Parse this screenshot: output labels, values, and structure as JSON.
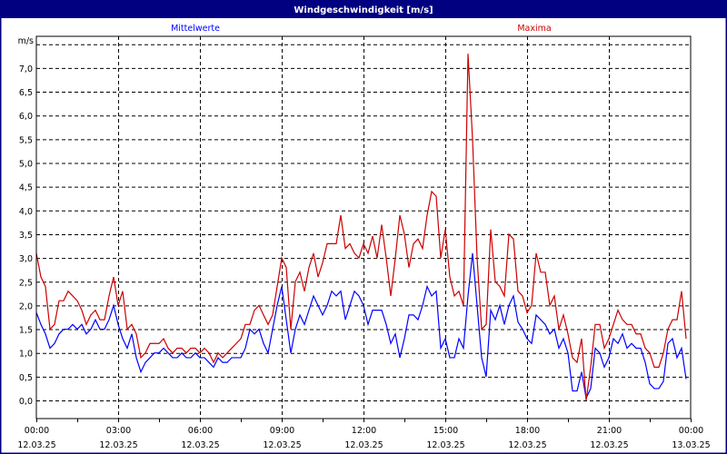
{
  "window": {
    "title": "Windgeschwindigkeit [m/s]"
  },
  "chart_data": {
    "type": "line",
    "title": "Windgeschwindigkeit [m/s]",
    "ylabel": "m/s",
    "ylim": [
      0,
      7.5
    ],
    "yticks": [
      0,
      0.5,
      1,
      1.5,
      2,
      2.5,
      3,
      3.5,
      4,
      4.5,
      5,
      5.5,
      6,
      6.5,
      7
    ],
    "ytick_labels": [
      "0,0",
      "0,5",
      "1,0",
      "1,5",
      "2,0",
      "2,5",
      "3,0",
      "3,5",
      "4,0",
      "4,5",
      "5,0",
      "5,5",
      "6,0",
      "6,5",
      "7,0"
    ],
    "x_range_hours": [
      0,
      24
    ],
    "x_interval_minutes": 10,
    "xtick_labels": [
      {
        "time": "00:00",
        "date": "12.03.25"
      },
      {
        "time": "03:00",
        "date": "12.03.25"
      },
      {
        "time": "06:00",
        "date": "12.03.25"
      },
      {
        "time": "09:00",
        "date": "12.03.25"
      },
      {
        "time": "12:00",
        "date": "12.03.25"
      },
      {
        "time": "15:00",
        "date": "12.03.25"
      },
      {
        "time": "18:00",
        "date": "12.03.25"
      },
      {
        "time": "21:00",
        "date": "12.03.25"
      },
      {
        "time": "00:00",
        "date": "13.03.25"
      }
    ],
    "grid": true,
    "series": [
      {
        "name": "Mittelwerte",
        "color": "#0000ff",
        "legend_position": "top-left",
        "values": [
          1.85,
          1.6,
          1.4,
          1.1,
          1.2,
          1.4,
          1.5,
          1.5,
          1.6,
          1.5,
          1.6,
          1.4,
          1.5,
          1.7,
          1.5,
          1.5,
          1.7,
          2.0,
          1.6,
          1.3,
          1.1,
          1.4,
          0.9,
          0.6,
          0.8,
          0.9,
          1.0,
          1.0,
          1.1,
          1.0,
          0.9,
          0.9,
          1.0,
          0.9,
          0.9,
          1.0,
          0.9,
          0.9,
          0.8,
          0.7,
          0.9,
          0.8,
          0.8,
          0.9,
          0.9,
          0.9,
          1.1,
          1.5,
          1.4,
          1.5,
          1.2,
          1.0,
          1.5,
          2.0,
          2.4,
          1.7,
          1.0,
          1.5,
          1.8,
          1.6,
          1.9,
          2.2,
          2.0,
          1.8,
          2.0,
          2.3,
          2.2,
          2.3,
          1.7,
          2.0,
          2.3,
          2.2,
          2.0,
          1.6,
          1.9,
          1.9,
          1.9,
          1.6,
          1.2,
          1.4,
          0.9,
          1.3,
          1.8,
          1.8,
          1.7,
          2.0,
          2.4,
          2.2,
          2.3,
          1.1,
          1.3,
          0.9,
          0.9,
          1.3,
          1.1,
          2.2,
          3.1,
          2.0,
          0.9,
          0.5,
          1.9,
          1.7,
          2.0,
          1.6,
          2.0,
          2.2,
          1.65,
          1.5,
          1.3,
          1.2,
          1.8,
          1.7,
          1.6,
          1.4,
          1.5,
          1.1,
          1.3,
          1.0,
          0.2,
          0.2,
          0.6,
          0.05,
          0.25,
          1.1,
          1.0,
          0.7,
          0.9,
          1.3,
          1.2,
          1.4,
          1.1,
          1.2,
          1.1,
          1.1,
          0.8,
          0.35,
          0.25,
          0.25,
          0.4,
          1.2,
          1.3,
          0.9,
          1.1,
          0.45
        ]
      },
      {
        "name": "Maxima",
        "color": "#cc0000",
        "legend_position": "top-right",
        "values": [
          3.1,
          2.6,
          2.4,
          1.5,
          1.6,
          2.1,
          2.1,
          2.3,
          2.2,
          2.1,
          1.9,
          1.6,
          1.8,
          1.9,
          1.7,
          1.7,
          2.2,
          2.6,
          2.0,
          2.3,
          1.5,
          1.6,
          1.4,
          0.9,
          1.0,
          1.2,
          1.2,
          1.2,
          1.3,
          1.1,
          1.0,
          1.1,
          1.1,
          1.0,
          1.1,
          1.1,
          1.0,
          1.1,
          1.0,
          0.8,
          1.0,
          0.9,
          1.0,
          1.1,
          1.2,
          1.3,
          1.6,
          1.6,
          1.9,
          2.0,
          1.8,
          1.6,
          1.8,
          2.4,
          3.0,
          2.8,
          1.5,
          2.5,
          2.7,
          2.3,
          2.8,
          3.1,
          2.6,
          2.9,
          3.3,
          3.3,
          3.3,
          3.9,
          3.2,
          3.3,
          3.1,
          3.0,
          3.3,
          3.1,
          3.46,
          3.0,
          3.7,
          3.0,
          2.2,
          3.0,
          3.9,
          3.5,
          2.8,
          3.3,
          3.4,
          3.2,
          3.9,
          4.4,
          4.3,
          3.0,
          3.6,
          2.6,
          2.2,
          2.3,
          2.0,
          7.3,
          5.5,
          3.0,
          1.5,
          1.6,
          3.6,
          2.5,
          2.4,
          2.2,
          3.5,
          3.4,
          2.3,
          2.2,
          1.85,
          2.0,
          3.1,
          2.7,
          2.7,
          2.0,
          2.2,
          1.5,
          1.8,
          1.4,
          0.9,
          0.8,
          1.3,
          0.0,
          0.7,
          1.6,
          1.6,
          1.1,
          1.3,
          1.6,
          1.9,
          1.7,
          1.6,
          1.6,
          1.4,
          1.4,
          1.1,
          1.0,
          0.7,
          0.7,
          1.0,
          1.5,
          1.7,
          1.7,
          2.3,
          1.3
        ]
      }
    ]
  }
}
